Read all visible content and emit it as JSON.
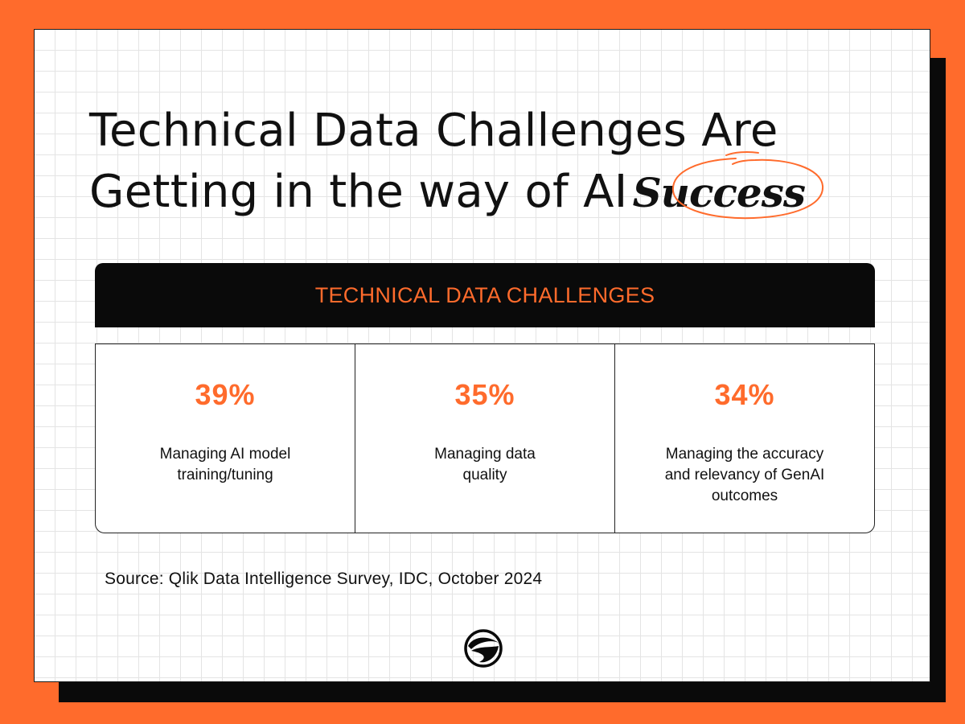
{
  "colors": {
    "brand_orange": "#FF6B2C",
    "black": "#0A0A0A",
    "card_bg": "#FFFFFF"
  },
  "headline": {
    "line1": "Technical Data Challenges Are",
    "line2_prefix": "Getting in the way of AI",
    "accent_word": "Success"
  },
  "table": {
    "header": "TECHNICAL DATA CHALLENGES",
    "stats": [
      {
        "value": "39%",
        "label_lines": [
          "Managing AI model",
          "training/tuning"
        ]
      },
      {
        "value": "35%",
        "label_lines": [
          "Managing data",
          "quality"
        ]
      },
      {
        "value": "34%",
        "label_lines": [
          "Managing the accuracy",
          "and relevancy of GenAI",
          "outcomes"
        ]
      }
    ]
  },
  "source": "Source: Qlik Data Intelligence Survey, IDC, October 2024",
  "icons": {
    "logo": "brand-logo-icon",
    "annotation": "hand-drawn-circle-icon"
  }
}
